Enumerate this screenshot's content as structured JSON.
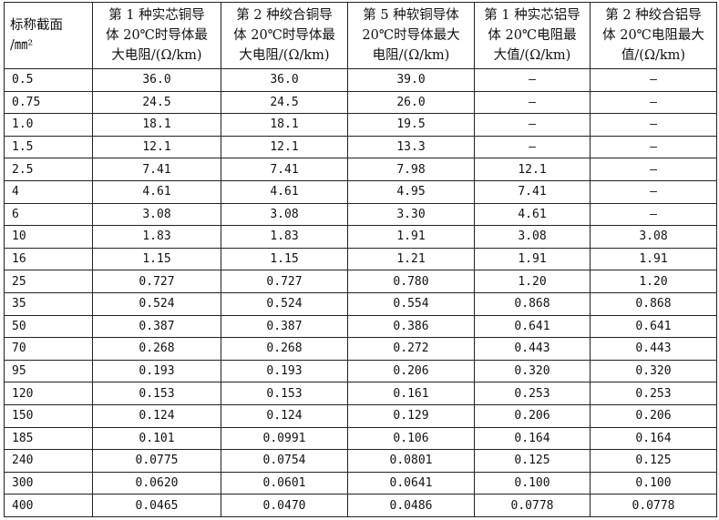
{
  "table": {
    "headers": [
      "标称截面\n/㎜²",
      "第 1 种实芯铜导\n体 20℃时导体最\n大电阻/(Ω/km)",
      "第 2 种绞合铜导\n体 20℃时导体最\n大电阻/(Ω/km)",
      "第 5 种软铜导体\n20℃时导体最大\n电阻/(Ω/km)",
      "第 1 种实芯铝导\n体 20℃电阻最\n大值/(Ω/km)",
      "第 2 种绞合铝导\n体 20℃电阻最大\n值/(Ω/km)"
    ],
    "rows": [
      [
        "0.5",
        "36.0",
        "36.0",
        "39.0",
        "—",
        "—"
      ],
      [
        "0.75",
        "24.5",
        "24.5",
        "26.0",
        "—",
        "—"
      ],
      [
        "1.0",
        "18.1",
        "18.1",
        "19.5",
        "—",
        "—"
      ],
      [
        "1.5",
        "12.1",
        "12.1",
        "13.3",
        "—",
        "—"
      ],
      [
        "2.5",
        "7.41",
        "7.41",
        "7.98",
        "12.1",
        "—"
      ],
      [
        "4",
        "4.61",
        "4.61",
        "4.95",
        "7.41",
        "—"
      ],
      [
        "6",
        "3.08",
        "3.08",
        "3.30",
        "4.61",
        "—"
      ],
      [
        "10",
        "1.83",
        "1.83",
        "1.91",
        "3.08",
        "3.08"
      ],
      [
        "16",
        "1.15",
        "1.15",
        "1.21",
        "1.91",
        "1.91"
      ],
      [
        "25",
        "0.727",
        "0.727",
        "0.780",
        "1.20",
        "1.20"
      ],
      [
        "35",
        "0.524",
        "0.524",
        "0.554",
        "0.868",
        "0.868"
      ],
      [
        "50",
        "0.387",
        "0.387",
        "0.386",
        "0.641",
        "0.641"
      ],
      [
        "70",
        "0.268",
        "0.268",
        "0.272",
        "0.443",
        "0.443"
      ],
      [
        "95",
        "0.193",
        "0.193",
        "0.206",
        "0.320",
        "0.320"
      ],
      [
        "120",
        "0.153",
        "0.153",
        "0.161",
        "0.253",
        "0.253"
      ],
      [
        "150",
        "0.124",
        "0.124",
        "0.129",
        "0.206",
        "0.206"
      ],
      [
        "185",
        "0.101",
        "0.0991",
        "0.106",
        "0.164",
        "0.164"
      ],
      [
        "240",
        "0.0775",
        "0.0754",
        "0.0801",
        "0.125",
        "0.125"
      ],
      [
        "300",
        "0.0620",
        "0.0601",
        "0.0641",
        "0.100",
        "0.100"
      ],
      [
        "400",
        "0.0465",
        "0.0470",
        "0.0486",
        "0.0778",
        "0.0778"
      ]
    ]
  }
}
